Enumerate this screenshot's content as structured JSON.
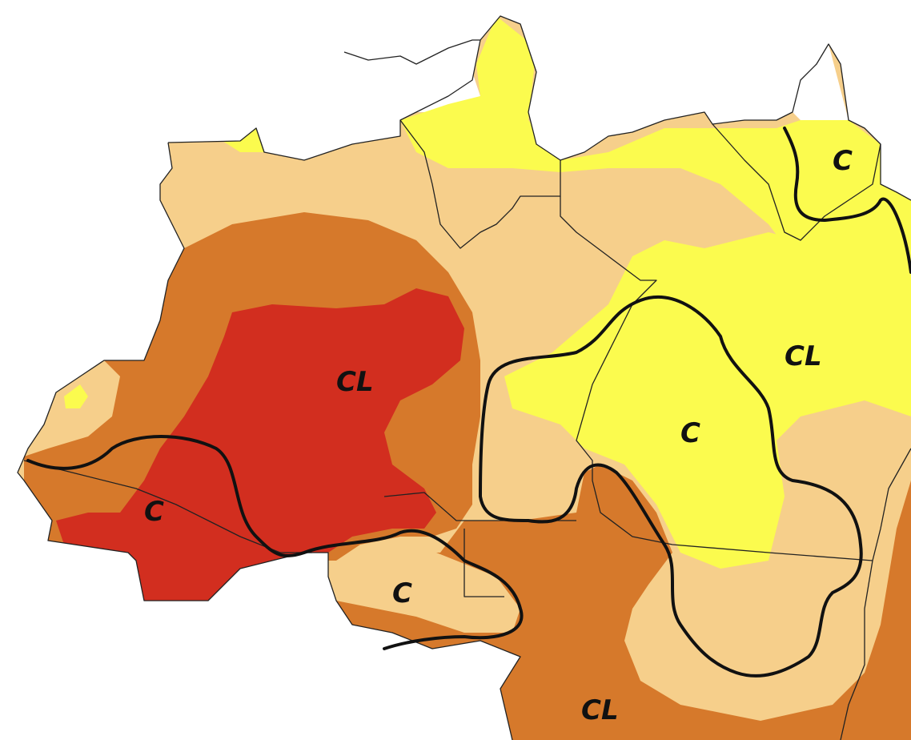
{
  "colors": {
    "background": "#ffffff",
    "no_anomaly": "#ffffff",
    "light_yellow": "#fbfb4e",
    "tan": "#f6cf8b",
    "orange": "#d6792b",
    "red": "#d22e1f",
    "contour_line": "#111111",
    "state_border": "#222222"
  },
  "labels": {
    "cl_northwest": "CL",
    "c_west": "C",
    "c_southwest": "C",
    "cl_south": "CL",
    "c_central": "C",
    "cl_northeast": "CL",
    "c_amapa": "C"
  }
}
